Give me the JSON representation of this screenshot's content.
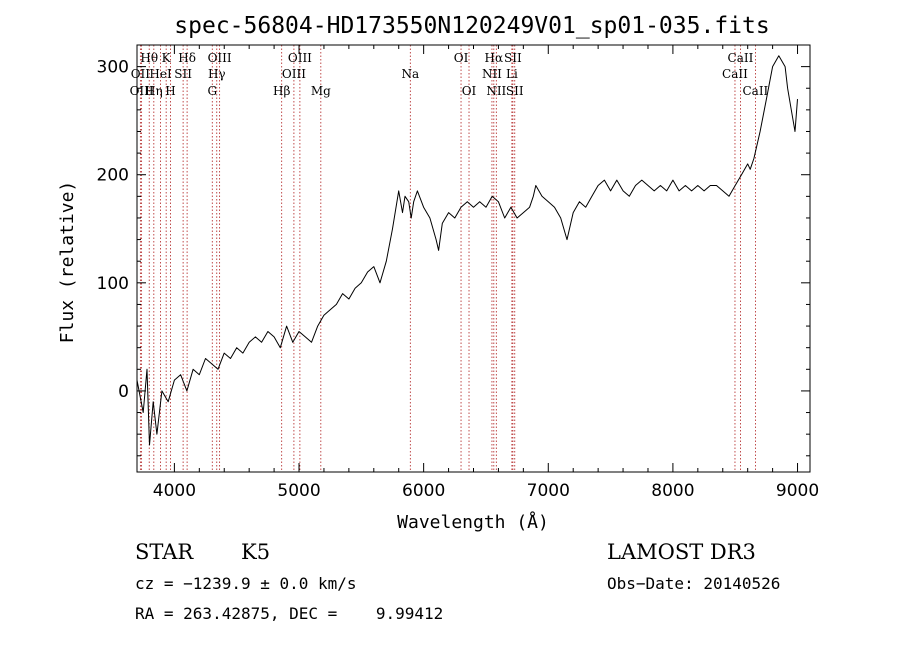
{
  "chart_data": {
    "type": "line",
    "title": "spec-56804-HD173550N120249V01_sp01-035.fits",
    "xlabel": "Wavelength (Å)",
    "ylabel": "Flux (relative)",
    "xlim": [
      3700,
      9100
    ],
    "ylim": [
      -75,
      320
    ],
    "xticks": [
      4000,
      5000,
      6000,
      7000,
      8000,
      9000
    ],
    "xtick_labels": [
      "4000",
      "5000",
      "6000",
      "7000",
      "8000",
      "9000"
    ],
    "yticks": [
      0,
      100,
      200,
      300
    ],
    "ytick_labels": [
      "0",
      "100",
      "200",
      "300"
    ],
    "series": [
      {
        "name": "spectrum",
        "x": [
          3700,
          3750,
          3780,
          3800,
          3830,
          3860,
          3900,
          3950,
          4000,
          4050,
          4100,
          4150,
          4200,
          4250,
          4300,
          4350,
          4400,
          4450,
          4500,
          4550,
          4600,
          4650,
          4700,
          4750,
          4800,
          4850,
          4900,
          4950,
          5000,
          5050,
          5100,
          5150,
          5200,
          5250,
          5300,
          5350,
          5400,
          5450,
          5500,
          5550,
          5600,
          5650,
          5700,
          5750,
          5800,
          5830,
          5850,
          5880,
          5900,
          5920,
          5950,
          6000,
          6050,
          6100,
          6120,
          6150,
          6200,
          6250,
          6300,
          6350,
          6400,
          6450,
          6500,
          6550,
          6600,
          6650,
          6700,
          6750,
          6800,
          6850,
          6880,
          6900,
          6950,
          7000,
          7050,
          7100,
          7150,
          7200,
          7250,
          7300,
          7350,
          7400,
          7450,
          7500,
          7550,
          7600,
          7650,
          7700,
          7750,
          7800,
          7850,
          7900,
          7950,
          8000,
          8050,
          8100,
          8150,
          8200,
          8250,
          8300,
          8350,
          8400,
          8450,
          8500,
          8550,
          8600,
          8620,
          8650,
          8700,
          8750,
          8800,
          8850,
          8900,
          8920,
          8950,
          8980,
          9000
        ],
        "values": [
          10,
          -20,
          20,
          -50,
          -10,
          -40,
          0,
          -10,
          10,
          15,
          0,
          20,
          15,
          30,
          25,
          20,
          35,
          30,
          40,
          35,
          45,
          50,
          45,
          55,
          50,
          40,
          60,
          45,
          55,
          50,
          45,
          60,
          70,
          75,
          80,
          90,
          85,
          95,
          100,
          110,
          115,
          100,
          120,
          150,
          185,
          165,
          180,
          175,
          160,
          175,
          185,
          170,
          160,
          140,
          130,
          155,
          165,
          160,
          170,
          175,
          170,
          175,
          170,
          180,
          175,
          160,
          170,
          160,
          165,
          170,
          180,
          190,
          180,
          175,
          170,
          160,
          140,
          165,
          175,
          170,
          180,
          190,
          195,
          185,
          195,
          185,
          180,
          190,
          195,
          190,
          185,
          190,
          185,
          195,
          185,
          190,
          185,
          190,
          185,
          190,
          190,
          185,
          180,
          190,
          200,
          210,
          205,
          215,
          240,
          270,
          300,
          310,
          300,
          280,
          260,
          240,
          270
        ]
      }
    ],
    "spectral_lines": [
      {
        "name": "Hθ",
        "x": 3798,
        "row": 0
      },
      {
        "name": "OII",
        "x": 3727,
        "row": 1
      },
      {
        "name": "OIII",
        "x": 3737,
        "row": 2
      },
      {
        "name": "Hη",
        "x": 3835,
        "row": 2
      },
      {
        "name": "HeI",
        "x": 3889,
        "row": 1
      },
      {
        "name": "K",
        "x": 3934,
        "row": 0
      },
      {
        "name": "SII",
        "x": 4070,
        "row": 1
      },
      {
        "name": "H",
        "x": 3969,
        "row": 2
      },
      {
        "name": "Hδ",
        "x": 4102,
        "row": 0
      },
      {
        "name": "OIII",
        "x": 4363,
        "row": 0
      },
      {
        "name": "Hγ",
        "x": 4340,
        "row": 1
      },
      {
        "name": "G",
        "x": 4304,
        "row": 2
      },
      {
        "name": "Hβ",
        "x": 4861,
        "row": 2
      },
      {
        "name": "OIII",
        "x": 5007,
        "row": 0
      },
      {
        "name": "OIII",
        "x": 4959,
        "row": 1
      },
      {
        "name": "Mg",
        "x": 5175,
        "row": 2
      },
      {
        "name": "Na",
        "x": 5893,
        "row": 1
      },
      {
        "name": "OI",
        "x": 6300,
        "row": 0
      },
      {
        "name": "OI",
        "x": 6364,
        "row": 2
      },
      {
        "name": "Hα",
        "x": 6563,
        "row": 0
      },
      {
        "name": "NII",
        "x": 6548,
        "row": 1
      },
      {
        "name": "NII",
        "x": 6583,
        "row": 2
      },
      {
        "name": "SII",
        "x": 6716,
        "row": 0
      },
      {
        "name": "Li",
        "x": 6708,
        "row": 1
      },
      {
        "name": "SII",
        "x": 6731,
        "row": 2
      },
      {
        "name": "CaII",
        "x": 8542,
        "row": 0
      },
      {
        "name": "CaII",
        "x": 8498,
        "row": 1
      },
      {
        "name": "CaII",
        "x": 8662,
        "row": 2
      }
    ]
  },
  "info": {
    "object_type": "STAR",
    "subclass": "K5",
    "survey": "LAMOST DR3",
    "cz": "cz = −1239.9 ± 0.0 km/s",
    "obs_date": "Obs−Date: 20140526",
    "coords": "RA = 263.42875, DEC =    9.99412"
  },
  "colors": {
    "line_marker": "#b02020",
    "spectrum": "#000000",
    "background": "#ffffff"
  }
}
